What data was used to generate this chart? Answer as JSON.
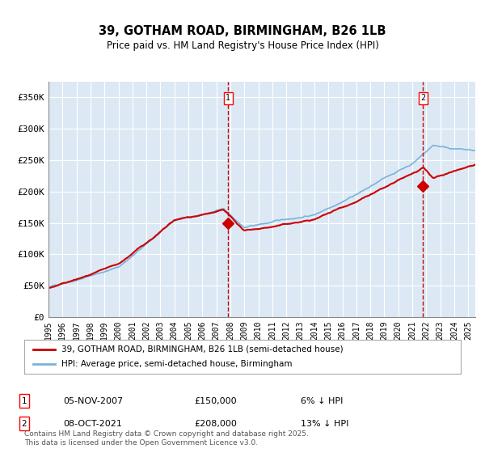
{
  "title": "39, GOTHAM ROAD, BIRMINGHAM, B26 1LB",
  "subtitle": "Price paid vs. HM Land Registry's House Price Index (HPI)",
  "background_color": "#dce9f5",
  "plot_bg_color": "#dce9f5",
  "hpi_color": "#7ab3d9",
  "price_color": "#cc0000",
  "marker_color": "#cc0000",
  "dashed_line_color": "#cc0000",
  "ylim": [
    0,
    375000
  ],
  "yticks": [
    0,
    50000,
    100000,
    150000,
    200000,
    250000,
    300000,
    350000
  ],
  "ytick_labels": [
    "£0",
    "£50K",
    "£100K",
    "£150K",
    "£200K",
    "£250K",
    "£300K",
    "£350K"
  ],
  "event1_date": 2007.85,
  "event1_price": 150000,
  "event1_label": "1",
  "event2_date": 2021.77,
  "event2_price": 208000,
  "event2_label": "2",
  "legend_entry1": "39, GOTHAM ROAD, BIRMINGHAM, B26 1LB (semi-detached house)",
  "legend_entry2": "HPI: Average price, semi-detached house, Birmingham",
  "table_row1_num": "1",
  "table_row1_date": "05-NOV-2007",
  "table_row1_price": "£150,000",
  "table_row1_hpi": "6% ↓ HPI",
  "table_row2_num": "2",
  "table_row2_date": "08-OCT-2021",
  "table_row2_price": "£208,000",
  "table_row2_hpi": "13% ↓ HPI",
  "footer": "Contains HM Land Registry data © Crown copyright and database right 2025.\nThis data is licensed under the Open Government Licence v3.0.",
  "xlim_start": 1995.0,
  "xlim_end": 2025.5
}
